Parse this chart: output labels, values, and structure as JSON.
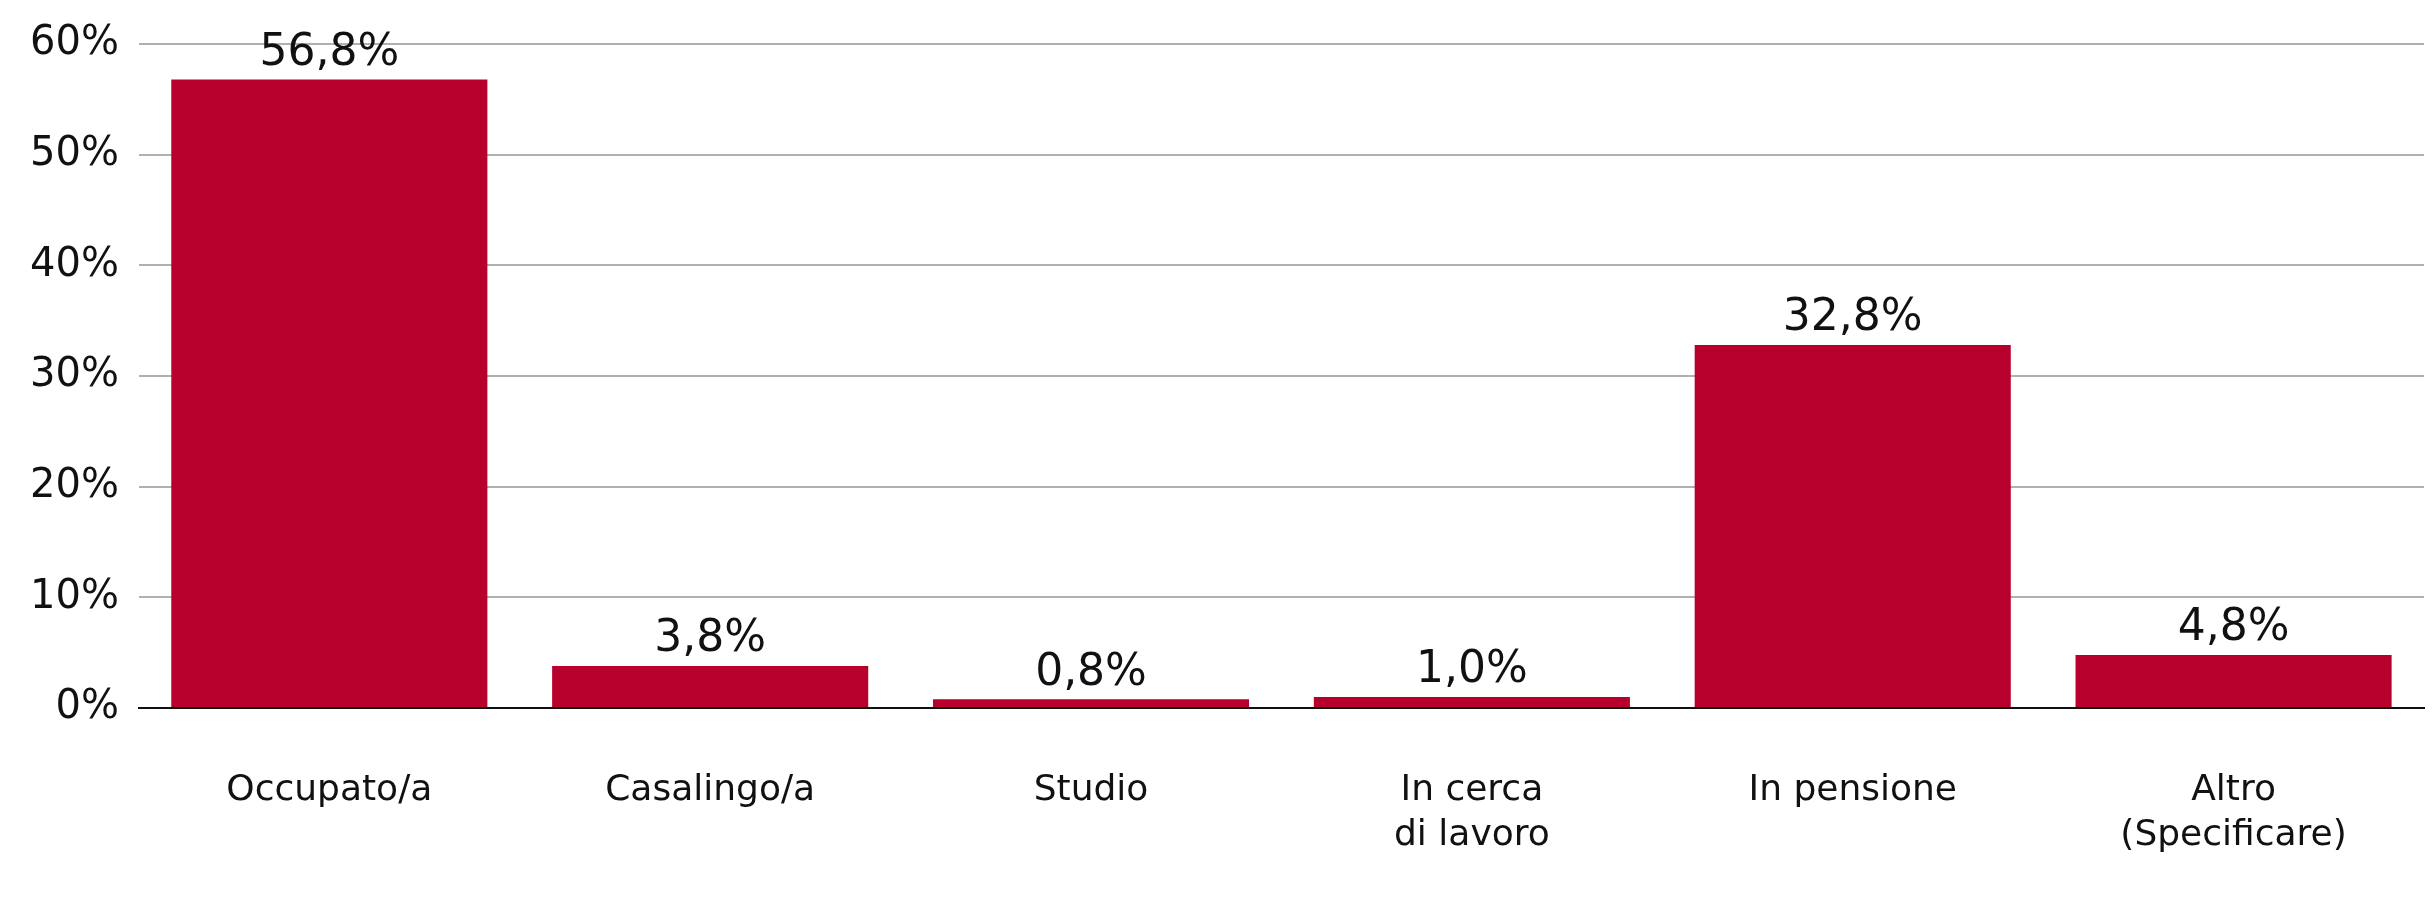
{
  "chart_data": {
    "type": "bar",
    "categories": [
      "Occupato/a",
      "Casalingo/a",
      "Studio",
      "In cerca di lavoro",
      "In pensione",
      "Altro (Specificare)"
    ],
    "values": [
      56.8,
      3.8,
      0.8,
      1.0,
      32.8,
      4.8
    ],
    "value_labels": [
      "56,8%",
      "3,8%",
      "0,8%",
      "1,0%",
      "32,8%",
      "4,8%"
    ],
    "color": "#b8002d",
    "ylim": [
      0,
      60
    ],
    "yticks": [
      {
        "value": 0,
        "label": "0%"
      },
      {
        "value": 10,
        "label": "10%"
      },
      {
        "value": 20,
        "label": "20%"
      },
      {
        "value": 30,
        "label": "30%"
      },
      {
        "value": 40,
        "label": "40%"
      },
      {
        "value": 50,
        "label": "50%"
      },
      {
        "value": 60,
        "label": "60%"
      }
    ],
    "grid": "y",
    "legend": false
  }
}
